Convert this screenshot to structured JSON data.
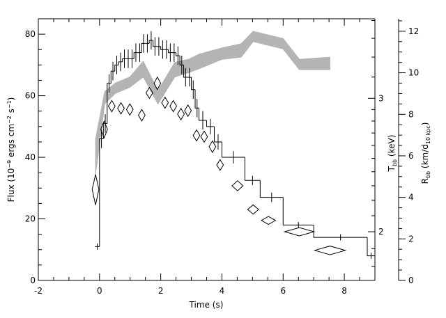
{
  "chart_data": {
    "type": "burst",
    "xlabel": "Time (s)",
    "ylabel": [
      {
        "text": "Flux (10"
      },
      {
        "text": "−9",
        "sup": true
      },
      {
        "text": " ergs cm"
      },
      {
        "text": "−2",
        "sup": true
      },
      {
        "text": " s"
      },
      {
        "text": "−1",
        "sup": true
      },
      {
        "text": ")"
      }
    ],
    "y3label": [
      {
        "text": "T"
      },
      {
        "text": "bb",
        "sub": true
      },
      {
        "text": " (keV)"
      }
    ],
    "y2label": [
      {
        "text": "R"
      },
      {
        "text": "bb",
        "sub": true
      },
      {
        "text": " (km/d"
      },
      {
        "text": "10 kpc",
        "sub": true
      },
      {
        "text": ")"
      }
    ],
    "xlim": [
      -2,
      9
    ],
    "xticks": [
      -2,
      0,
      2,
      4,
      6,
      8
    ],
    "xminor": [
      -1.5,
      -1,
      -0.5,
      0.5,
      1,
      1.5,
      2.5,
      3,
      3.5,
      4.5,
      5,
      5.5,
      6.5,
      7,
      7.5,
      8.5
    ],
    "ylim": [
      0,
      85
    ],
    "yticks": [
      0,
      20,
      40,
      60,
      80
    ],
    "yminor": [
      5,
      10,
      15,
      25,
      30,
      35,
      45,
      50,
      55,
      65,
      70,
      75,
      85
    ],
    "y3lim": [
      1.725,
      3.82
    ],
    "y3log": true,
    "y3ticks": [
      2,
      3
    ],
    "y3minor": [
      1.8,
      1.9,
      2.1,
      2.2,
      2.3,
      2.4,
      2.5,
      2.6,
      2.7,
      2.8,
      2.9,
      3.2,
      3.4,
      3.6,
      3.8
    ],
    "y2lim": [
      0,
      12.6
    ],
    "y2ticks": [
      0,
      2,
      4,
      6,
      8,
      10,
      12
    ],
    "y2minor": [
      0.5,
      1,
      1.5,
      2.5,
      3,
      3.5,
      4.5,
      5,
      5.5,
      6.5,
      7,
      7.5,
      8.5,
      9,
      9.5,
      10.5,
      11,
      11.5,
      12.5
    ],
    "flux": {
      "color": "#000000",
      "bins": [
        -0.15,
        0,
        0.125,
        0.25,
        0.375,
        0.5,
        0.625,
        0.75,
        0.875,
        1.0,
        1.125,
        1.25,
        1.375,
        1.5,
        1.625,
        1.75,
        1.875,
        2.0,
        2.125,
        2.25,
        2.375,
        2.5,
        2.625,
        2.75,
        2.875,
        3.0,
        3.125,
        3.25,
        3.5,
        3.75,
        4.0,
        4.75,
        5.25,
        6.0,
        7.0,
        8.75,
        9.0
      ],
      "values": [
        11,
        46,
        51,
        64,
        68,
        70,
        71,
        72,
        72,
        72,
        74,
        74,
        77,
        77,
        78,
        76,
        76,
        75,
        75,
        74,
        74,
        73,
        70,
        66,
        66,
        62,
        56,
        52,
        50,
        45,
        40,
        32.5,
        27,
        18,
        14,
        8
      ],
      "errors": [
        1,
        3,
        3,
        3,
        3,
        3,
        3,
        3,
        3,
        3,
        3,
        3,
        3,
        3,
        3,
        3,
        3,
        3,
        3,
        3,
        3,
        3,
        3,
        3,
        3,
        3,
        3,
        3,
        2.5,
        2.5,
        2,
        1.5,
        1.5,
        1,
        1,
        1
      ]
    },
    "temperature": {
      "color": "#000000",
      "axis": "y3",
      "x": [
        -0.13,
        0.15,
        0.4,
        0.7,
        0.99,
        1.38,
        1.63,
        1.89,
        2.14,
        2.41,
        2.66,
        2.89,
        3.17,
        3.42,
        3.69,
        3.94,
        4.51,
        5.02,
        5.52,
        6.53,
        7.53
      ],
      "xerr": [
        0.11,
        0.11,
        0.11,
        0.11,
        0.11,
        0.11,
        0.11,
        0.11,
        0.11,
        0.11,
        0.11,
        0.11,
        0.11,
        0.11,
        0.11,
        0.11,
        0.18,
        0.18,
        0.23,
        0.48,
        0.5
      ],
      "values": [
        2.275,
        2.73,
        2.93,
        2.91,
        2.9,
        2.85,
        3.05,
        3.14,
        2.96,
        2.93,
        2.86,
        2.89,
        2.68,
        2.67,
        2.59,
        2.45,
        2.3,
        2.14,
        2.07,
        2.0,
        1.89
      ],
      "errors": [
        0.105,
        0.07,
        0.05,
        0.05,
        0.05,
        0.05,
        0.05,
        0.06,
        0.05,
        0.05,
        0.05,
        0.05,
        0.045,
        0.045,
        0.045,
        0.04,
        0.035,
        0.03,
        0.025,
        0.025,
        0.025
      ]
    },
    "radius": {
      "color": "#b4b4b4",
      "axis": "y2",
      "x": [
        -0.13,
        0.17,
        0.51,
        0.99,
        1.43,
        1.91,
        2.46,
        2.91,
        3.26,
        4.01,
        4.63,
        5.02,
        6.0,
        6.53,
        7.53
      ],
      "lower": [
        5.1,
        8.5,
        9.0,
        9.3,
        9.8,
        8.5,
        9.8,
        10.0,
        10.2,
        10.65,
        10.75,
        11.5,
        11.15,
        10.15,
        10.15
      ],
      "upper": [
        6.8,
        9.1,
        9.5,
        9.8,
        10.55,
        9.15,
        10.5,
        10.65,
        10.9,
        11.2,
        11.4,
        12.0,
        11.65,
        10.65,
        10.75
      ]
    }
  }
}
